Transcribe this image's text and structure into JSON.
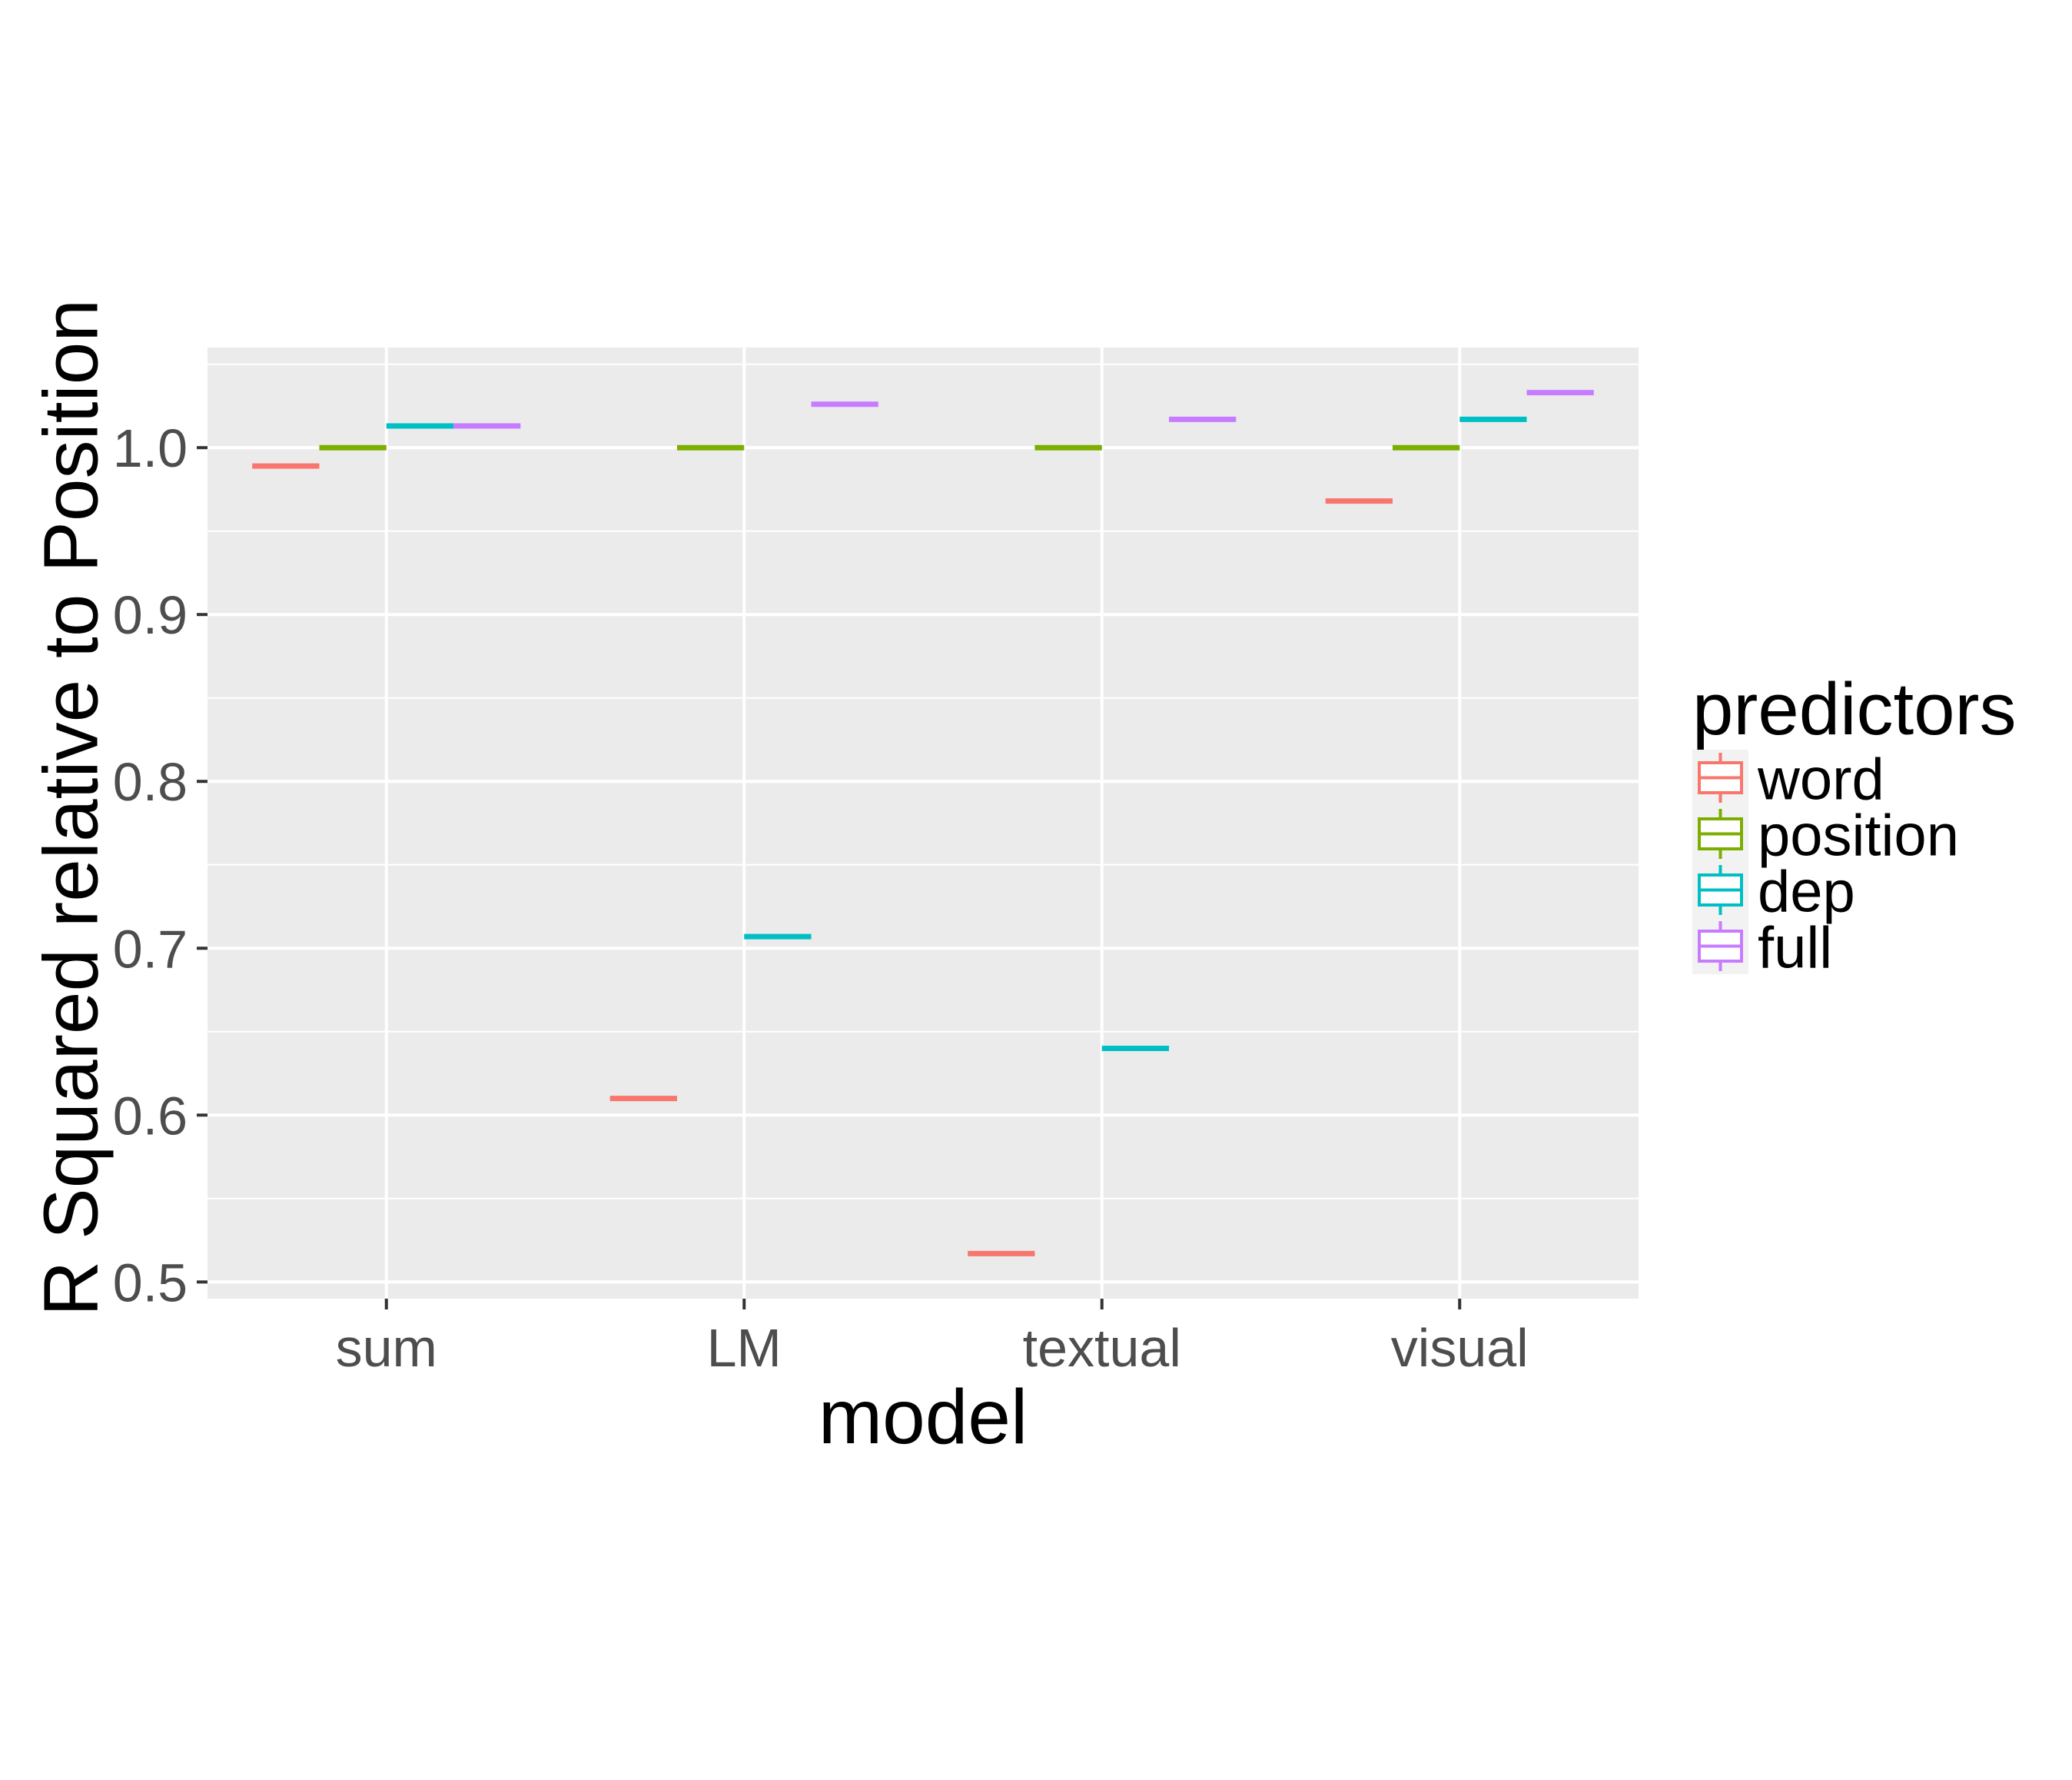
{
  "chart_data": {
    "type": "boxplot",
    "xlabel": "model",
    "ylabel": "R Squared relative to Position",
    "categories": [
      "sum",
      "LM",
      "textual",
      "visual"
    ],
    "ylim": [
      0.49,
      1.06
    ],
    "yticks": [
      0.5,
      0.6,
      0.7,
      0.8,
      0.9,
      1.0
    ],
    "ytick_labels": [
      "0.5",
      "0.6",
      "0.7",
      "0.8",
      "0.9",
      "1.0"
    ],
    "grid": true,
    "legend": {
      "title": "predictors",
      "placement": "right",
      "entries": [
        "word",
        "position",
        "dep",
        "full"
      ]
    },
    "series": [
      {
        "name": "word",
        "color": "#F8766D",
        "values": [
          0.989,
          0.61,
          0.517,
          0.968
        ]
      },
      {
        "name": "position",
        "color": "#7CAE00",
        "values": [
          1.0,
          1.0,
          1.0,
          1.0
        ]
      },
      {
        "name": "dep",
        "color": "#00BFC4",
        "values": [
          1.013,
          0.707,
          0.64,
          1.017
        ]
      },
      {
        "name": "full",
        "color": "#C77CFF",
        "values": [
          1.013,
          1.026,
          1.017,
          1.033
        ]
      }
    ]
  }
}
